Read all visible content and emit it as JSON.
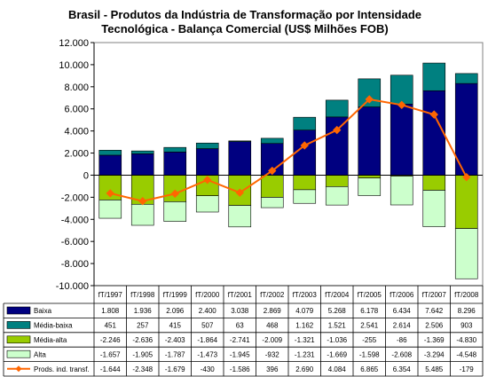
{
  "chart_data": {
    "type": "bar",
    "title_line1": "Brasil - Produtos da Indústria de Transformação por Intensidade",
    "title_line2": "Tecnológica - Balança Comercial (US$ Milhões FOB)",
    "categories": [
      "fT/1997",
      "fT/1998",
      "fT/1999",
      "fT/2000",
      "fT/2001",
      "fT/2002",
      "fT/2003",
      "fT/2004",
      "fT/2005",
      "fT/2006",
      "fT/2007",
      "fT/2008"
    ],
    "ylim": [
      -10000,
      12000
    ],
    "yticks": [
      12000,
      10000,
      8000,
      6000,
      4000,
      2000,
      0,
      -2000,
      -4000,
      -6000,
      -8000,
      -10000
    ],
    "ytick_labels": [
      "12.000",
      "10.000",
      "8.000",
      "6.000",
      "4.000",
      "2.000",
      "0",
      "-2.000",
      "-4.000",
      "-6.000",
      "-8.000",
      "-10.000"
    ],
    "grid": false,
    "legend": "table-below",
    "series": [
      {
        "name": "Baixa",
        "kind": "bar",
        "color": "#000080",
        "values": [
          1808,
          1936,
          2096,
          2400,
          3038,
          2869,
          4079,
          5268,
          6178,
          6434,
          7642,
          8296
        ],
        "labels": [
          "1.808",
          "1.936",
          "2.096",
          "2.400",
          "3.038",
          "2.869",
          "4.079",
          "5.268",
          "6.178",
          "6.434",
          "7.642",
          "8.296"
        ]
      },
      {
        "name": "Média-baixa",
        "kind": "bar",
        "color": "#008080",
        "values": [
          451,
          257,
          415,
          507,
          63,
          468,
          1162,
          1521,
          2541,
          2614,
          2506,
          903
        ],
        "labels": [
          "451",
          "257",
          "415",
          "507",
          "63",
          "468",
          "1.162",
          "1.521",
          "2.541",
          "2.614",
          "2.506",
          "903"
        ]
      },
      {
        "name": "Média-alta",
        "kind": "bar",
        "color": "#99cc00",
        "values": [
          -2246,
          -2636,
          -2403,
          -1864,
          -2741,
          -2009,
          -1321,
          -1036,
          -255,
          -86,
          -1369,
          -4830
        ],
        "labels": [
          "-2.246",
          "-2.636",
          "-2.403",
          "-1.864",
          "-2.741",
          "-2.009",
          "-1.321",
          "-1.036",
          "-255",
          "-86",
          "-1.369",
          "-4.830"
        ]
      },
      {
        "name": "Alta",
        "kind": "bar",
        "color": "#ccffcc",
        "values": [
          -1657,
          -1905,
          -1787,
          -1473,
          -1945,
          -932,
          -1231,
          -1669,
          -1598,
          -2608,
          -3294,
          -4548
        ],
        "labels": [
          "-1.657",
          "-1.905",
          "-1.787",
          "-1.473",
          "-1.945",
          "-932",
          "-1.231",
          "-1.669",
          "-1.598",
          "-2.608",
          "-3.294",
          "-4.548"
        ]
      },
      {
        "name": "Prods. ind. transf.",
        "kind": "line",
        "color": "#ff6600",
        "values": [
          -1644,
          -2348,
          -1679,
          -430,
          -1586,
          396,
          2690,
          4084,
          6865,
          6354,
          5485,
          -179
        ],
        "labels": [
          "-1.644",
          "-2.348",
          "-1.679",
          "-430",
          "-1.586",
          "396",
          "2.690",
          "4.084",
          "6.865",
          "6.354",
          "5.485",
          "-179"
        ]
      }
    ]
  }
}
